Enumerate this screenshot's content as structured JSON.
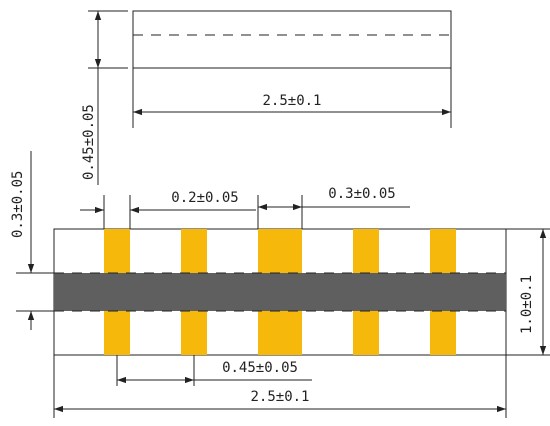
{
  "colors": {
    "pad": "#f6b90b",
    "core": "#5f5f5f",
    "line": "#222222",
    "background": "#ffffff"
  },
  "side_view": {
    "thickness_label": "0.45±0.05",
    "length_label": "2.5±0.1"
  },
  "top_view": {
    "pad_width_label": "0.2±0.05",
    "wide_pad_width_label": "0.3±0.05",
    "pad_height_label": "0.3±0.05",
    "pitch_label": "0.45±0.05",
    "length_label": "2.5±0.1",
    "width_label": "1.0±0.1"
  }
}
